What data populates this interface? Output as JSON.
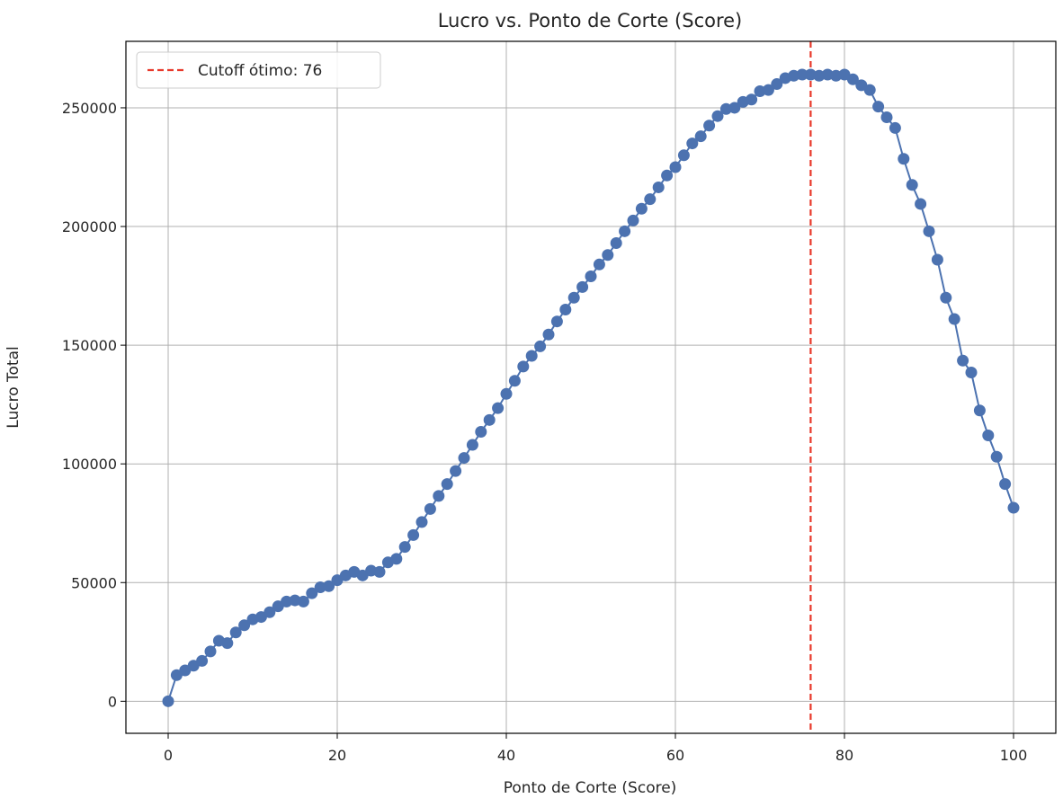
{
  "chart_data": {
    "type": "line",
    "title": "Lucro vs. Ponto de Corte (Score)",
    "xlabel": "Ponto de Corte (Score)",
    "ylabel": "Lucro Total",
    "xlim": [
      -5,
      105
    ],
    "ylim": [
      -13500,
      278000
    ],
    "xticks": [
      0,
      20,
      40,
      60,
      80,
      100
    ],
    "yticks": [
      0,
      50000,
      100000,
      150000,
      200000,
      250000
    ],
    "grid": true,
    "legend": {
      "position": "top-left",
      "entries": [
        "Cutoff ótimo: 76"
      ]
    },
    "series": [
      {
        "color": "#4c72b0",
        "marker": "circle",
        "x": [
          0,
          1,
          2,
          3,
          4,
          5,
          6,
          7,
          8,
          9,
          10,
          11,
          12,
          13,
          14,
          15,
          16,
          17,
          18,
          19,
          20,
          21,
          22,
          23,
          24,
          25,
          26,
          27,
          28,
          29,
          30,
          31,
          32,
          33,
          34,
          35,
          36,
          37,
          38,
          39,
          40,
          41,
          42,
          43,
          44,
          45,
          46,
          47,
          48,
          49,
          50,
          51,
          52,
          53,
          54,
          55,
          56,
          57,
          58,
          59,
          60,
          61,
          62,
          63,
          64,
          65,
          66,
          67,
          68,
          69,
          70,
          71,
          72,
          73,
          74,
          75,
          76,
          77,
          78,
          79,
          80,
          81,
          82,
          83,
          84,
          85,
          86,
          87,
          88,
          89,
          90,
          91,
          92,
          93,
          94,
          95,
          96,
          97,
          98,
          99,
          100
        ],
        "y": [
          0,
          11000,
          13000,
          15000,
          17000,
          21000,
          25500,
          24500,
          29000,
          32000,
          34500,
          35500,
          37500,
          40000,
          42000,
          42500,
          42000,
          45500,
          48000,
          48500,
          51000,
          53000,
          54500,
          53000,
          55000,
          54500,
          58500,
          60000,
          65000,
          70000,
          75500,
          81000,
          86500,
          91500,
          97000,
          102500,
          108000,
          113500,
          118500,
          123500,
          129500,
          135000,
          141000,
          145500,
          149500,
          154500,
          160000,
          165000,
          170000,
          174500,
          179000,
          184000,
          188000,
          193000,
          198000,
          202500,
          207500,
          211500,
          216500,
          221500,
          225000,
          230000,
          235000,
          238000,
          242500,
          246500,
          249500,
          250000,
          252500,
          253500,
          257000,
          257500,
          260000,
          262500,
          263500,
          264000,
          264000,
          263500,
          264000,
          263500,
          264000,
          262000,
          259500,
          257500,
          250500,
          246000,
          241500,
          228500,
          217500,
          209500,
          198000,
          186000,
          170000,
          161000,
          143500,
          138500,
          122500,
          112000,
          103000,
          91500,
          81500
        ]
      }
    ],
    "annotations": [
      {
        "type": "vline",
        "x": 76,
        "color": "#e8382a",
        "style": "dashed",
        "label": "Cutoff ótimo: 76"
      }
    ]
  }
}
